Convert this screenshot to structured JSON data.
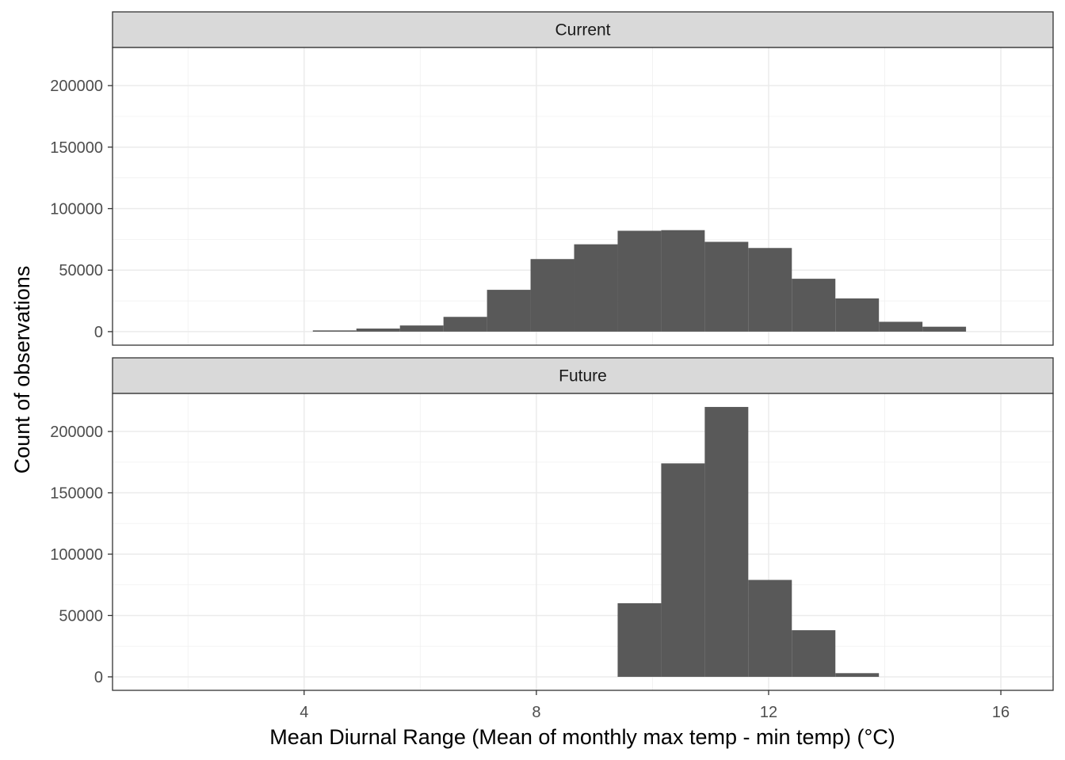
{
  "chart_data": {
    "type": "bar",
    "layout": "faceted-histogram",
    "xlabel": "Mean Diurnal Range (Mean of monthly max temp - min temp) (°C)",
    "ylabel": "Count of observations",
    "xlim": [
      0.7,
      16.9
    ],
    "ylim": [
      -11000,
      231000
    ],
    "x_ticks": [
      4,
      8,
      12,
      16
    ],
    "x_minor_ticks": [
      2,
      6,
      10,
      14
    ],
    "y_ticks": [
      0,
      50000,
      100000,
      150000,
      200000
    ],
    "y_minor_ticks": [
      25000,
      75000,
      125000,
      175000
    ],
    "grid": true,
    "bar_color": "#595959",
    "facets": [
      {
        "label": "Current",
        "bins": [
          {
            "x0": 4.15,
            "x1": 4.9,
            "count": 1000
          },
          {
            "x0": 4.9,
            "x1": 5.65,
            "count": 2500
          },
          {
            "x0": 5.65,
            "x1": 6.4,
            "count": 5000
          },
          {
            "x0": 6.4,
            "x1": 7.15,
            "count": 12000
          },
          {
            "x0": 7.15,
            "x1": 7.9,
            "count": 34000
          },
          {
            "x0": 7.9,
            "x1": 8.65,
            "count": 59000
          },
          {
            "x0": 8.65,
            "x1": 9.4,
            "count": 71000
          },
          {
            "x0": 9.4,
            "x1": 10.15,
            "count": 82000
          },
          {
            "x0": 10.15,
            "x1": 10.9,
            "count": 82500
          },
          {
            "x0": 10.9,
            "x1": 11.65,
            "count": 73000
          },
          {
            "x0": 11.65,
            "x1": 12.4,
            "count": 68000
          },
          {
            "x0": 12.4,
            "x1": 13.15,
            "count": 43000
          },
          {
            "x0": 13.15,
            "x1": 13.9,
            "count": 27000
          },
          {
            "x0": 13.9,
            "x1": 14.65,
            "count": 8000
          },
          {
            "x0": 14.65,
            "x1": 15.4,
            "count": 4000
          }
        ]
      },
      {
        "label": "Future",
        "bins": [
          {
            "x0": 9.4,
            "x1": 10.15,
            "count": 60000
          },
          {
            "x0": 10.15,
            "x1": 10.9,
            "count": 174000
          },
          {
            "x0": 10.9,
            "x1": 11.65,
            "count": 220000
          },
          {
            "x0": 11.65,
            "x1": 12.4,
            "count": 79000
          },
          {
            "x0": 12.4,
            "x1": 13.15,
            "count": 38000
          },
          {
            "x0": 13.15,
            "x1": 13.9,
            "count": 3000
          }
        ]
      }
    ]
  }
}
